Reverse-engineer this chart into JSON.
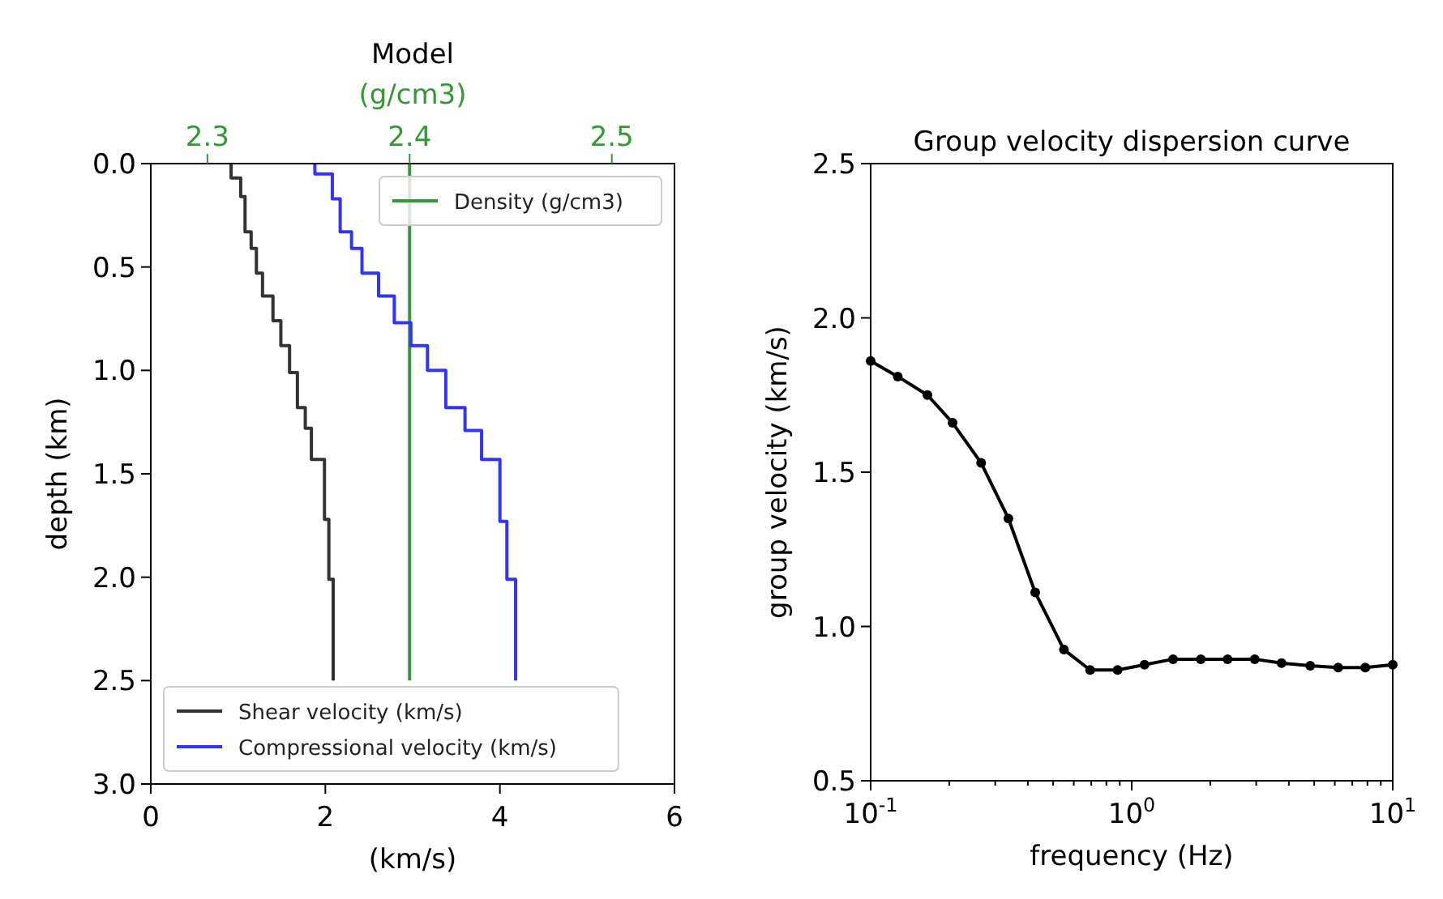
{
  "chart_data": [
    {
      "type": "line",
      "title": "Model",
      "x2label": "(g/cm3)",
      "xlabel": "(km/s)",
      "ylabel": "depth (km)",
      "xlim": [
        0,
        6
      ],
      "xticks": [
        0,
        2,
        4,
        6
      ],
      "ylim": [
        3,
        0
      ],
      "yticks": [
        {
          "value": 0,
          "label": "0.0"
        },
        {
          "value": 0.5,
          "label": "0.5"
        },
        {
          "value": 1,
          "label": "1.0"
        },
        {
          "value": 1.5,
          "label": "1.5"
        },
        {
          "value": 2,
          "label": "2.0"
        },
        {
          "value": 2.5,
          "label": "2.5"
        },
        {
          "value": 3,
          "label": "3.0"
        }
      ],
      "x2lim": [
        2.272,
        2.531
      ],
      "x2ticks": [
        2.3,
        2.4,
        2.5
      ],
      "legend": "bottom left",
      "series": [
        {
          "name": "Density (g/cm3)",
          "color": "#339933",
          "axis": "x2",
          "x": [
            2.4,
            2.4
          ],
          "values": [
            0,
            2.5
          ]
        },
        {
          "name": "Shear velocity (km/s)",
          "color": "#333333",
          "x": [
            0.92,
            0.92,
            1.03,
            1.03,
            1.08,
            1.08,
            1.15,
            1.15,
            1.21,
            1.21,
            1.28,
            1.28,
            1.4,
            1.4,
            1.49,
            1.49,
            1.59,
            1.59,
            1.68,
            1.68,
            1.77,
            1.77,
            1.84,
            1.84,
            1.99,
            1.99,
            2.04,
            2.04,
            2.09,
            2.09
          ],
          "values": [
            0,
            0.07,
            0.07,
            0.16,
            0.16,
            0.33,
            0.33,
            0.41,
            0.41,
            0.53,
            0.53,
            0.64,
            0.64,
            0.76,
            0.76,
            0.88,
            0.88,
            1.01,
            1.01,
            1.18,
            1.18,
            1.28,
            1.28,
            1.43,
            1.43,
            1.72,
            1.72,
            2.01,
            2.01,
            2.5
          ]
        },
        {
          "name": "Compressional velocity (km/s)",
          "color": "#3333ff",
          "x": [
            1.88,
            1.88,
            2.08,
            2.08,
            2.17,
            2.17,
            2.3,
            2.3,
            2.42,
            2.42,
            2.61,
            2.61,
            2.79,
            2.79,
            2.98,
            2.98,
            3.17,
            3.17,
            3.38,
            3.38,
            3.6,
            3.6,
            3.79,
            3.79,
            4.0,
            4.0,
            4.08,
            4.08,
            4.18,
            4.18
          ],
          "values": [
            0,
            0.05,
            0.05,
            0.17,
            0.17,
            0.33,
            0.33,
            0.41,
            0.41,
            0.53,
            0.53,
            0.64,
            0.64,
            0.77,
            0.77,
            0.88,
            0.88,
            1.0,
            1.0,
            1.18,
            1.18,
            1.29,
            1.29,
            1.43,
            1.43,
            1.73,
            1.73,
            2.01,
            2.01,
            2.5
          ]
        }
      ]
    },
    {
      "type": "line",
      "title": "Group velocity dispersion curve",
      "xlabel": "frequency (Hz)",
      "ylabel": "group velocity (km/s)",
      "log": "x",
      "marker": "circle",
      "xlim": [
        0.1,
        10
      ],
      "xticks": [
        {
          "value": 0.1,
          "label": "10$^{-1}$"
        },
        {
          "value": 0.2,
          "label": null
        },
        {
          "value": 0.3,
          "label": null
        },
        {
          "value": 0.4,
          "label": null
        },
        {
          "value": 0.5,
          "label": null
        },
        {
          "value": 0.6,
          "label": null
        },
        {
          "value": 0.7,
          "label": null
        },
        {
          "value": 0.8,
          "label": null
        },
        {
          "value": 0.9,
          "label": null
        },
        {
          "value": 1,
          "label": "10$^{0}$"
        },
        {
          "value": 2,
          "label": null
        },
        {
          "value": 3,
          "label": null
        },
        {
          "value": 4,
          "label": null
        },
        {
          "value": 5,
          "label": null
        },
        {
          "value": 6,
          "label": null
        },
        {
          "value": 7,
          "label": null
        },
        {
          "value": 8,
          "label": null
        },
        {
          "value": 9,
          "label": null
        },
        {
          "value": 10,
          "label": "10$^{1}$"
        }
      ],
      "ylim": [
        0.5,
        2.5
      ],
      "yticks": [
        {
          "value": 0.5,
          "label": "0.5"
        },
        {
          "value": 1,
          "label": "1.0"
        },
        {
          "value": 1.5,
          "label": "1.5"
        },
        {
          "value": 2,
          "label": "2.0"
        },
        {
          "value": 2.5,
          "label": "2.5"
        }
      ],
      "series": [
        {
          "color": "#000000",
          "x": [
            0.1,
            0.127,
            0.165,
            0.206,
            0.265,
            0.337,
            0.427,
            0.55,
            0.693,
            0.883,
            1.12,
            1.44,
            1.84,
            2.33,
            2.96,
            3.75,
            4.83,
            6.18,
            7.85,
            10
          ],
          "values": [
            1.86,
            1.81,
            1.75,
            1.66,
            1.53,
            1.35,
            1.11,
            0.925,
            0.859,
            0.859,
            0.876,
            0.894,
            0.894,
            0.894,
            0.894,
            0.881,
            0.873,
            0.867,
            0.867,
            0.876
          ]
        }
      ]
    }
  ]
}
